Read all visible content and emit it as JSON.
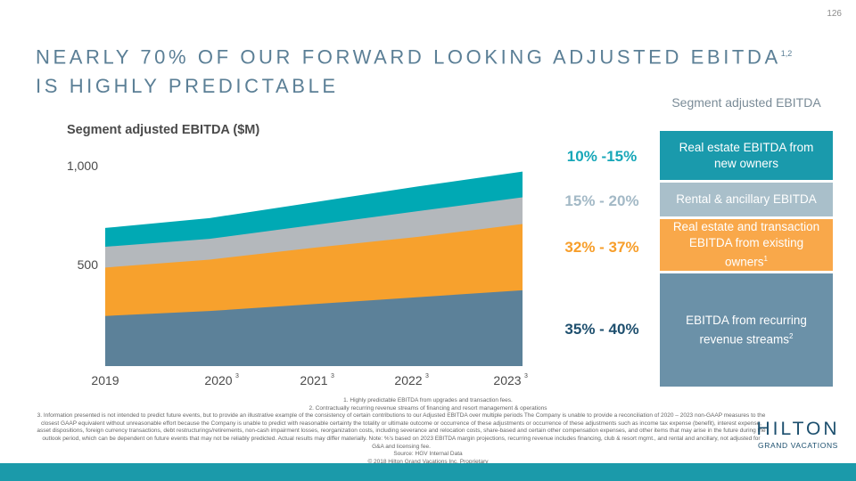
{
  "page": {
    "number": "126"
  },
  "header": {
    "title": "NEARLY 70% OF OUR FORWARD LOOKING ADJUSTED EBITDA",
    "title_sup": "1,2",
    "title_end": " IS HIGHLY PREDICTABLE"
  },
  "segment_header": "Segment adjusted EBITDA",
  "colors": {
    "teal": "#00a9b4",
    "gray": "#b4b8bc",
    "orange": "#f7a12d",
    "slate": "#5c8199",
    "box_teal": "#1a9aac",
    "box_light": "#a9bfca",
    "box_orange": "#f9a84a",
    "box_slate": "#6b91a8",
    "title_blue": "#5b7f96"
  },
  "chart_data": {
    "type": "area",
    "title": "Segment adjusted EBITDA ($M)",
    "x": [
      "2019",
      "2020",
      "2021",
      "2022",
      "2023"
    ],
    "x_sup": [
      "",
      "3",
      "3",
      "3",
      "3"
    ],
    "ytick_labels": [
      "1,000",
      "500"
    ],
    "ylim": [
      0,
      1000
    ],
    "stacked": true,
    "series": [
      {
        "values": [
          240,
          265,
          300,
          335,
          370
        ],
        "color": "#5c8199"
      },
      {
        "values": [
          485,
          525,
          585,
          640,
          705
        ],
        "color": "#f7a12d"
      },
      {
        "values": [
          590,
          630,
          700,
          770,
          840
        ],
        "color": "#b4b8bc"
      },
      {
        "values": [
          685,
          735,
          815,
          895,
          970
        ],
        "color": "#00a9b4"
      }
    ],
    "grid": false,
    "legend": "none"
  },
  "percentages": [
    {
      "label": "10% -15%",
      "color": "#17a7b8"
    },
    {
      "label": "15% - 20%",
      "color": "#a3b9c6"
    },
    {
      "label": "32% - 37%",
      "color": "#f79e2a"
    },
    {
      "label": "35% - 40%",
      "color": "#1e4f6e"
    }
  ],
  "segments": [
    {
      "label": "Real estate EBITDA from new owners",
      "sup": ""
    },
    {
      "label": "Rental & ancillary EBITDA",
      "sup": ""
    },
    {
      "label": "Real estate and transaction EBITDA from existing owners",
      "sup": "1"
    },
    {
      "label": "EBITDA from recurring revenue streams",
      "sup": "2"
    }
  ],
  "footnotes": {
    "f1": "1.        Highly predictable EBITDA from upgrades and transaction fees.",
    "f2": "2.        Contractually recurring revenue streams of financing and resort management & operations",
    "f3": "3.        Information presented is not intended to predict future events, but to provide an illustrative example of the consistency of certain contributions to our Adjusted EBITDA over multiple periods The Company is unable to provide a reconciliation of 2020 – 2023 non-GAAP measures to the closest GAAP equivalent without unreasonable effort because the Company is unable to predict with reasonable certainty the totality or ultimate outcome or occurrence of these adjustments or occurrence of these adjustments such as income tax expense (benefit), interest expense, asset dispositions, foreign currency transactions, debt restructurings/retirements, non-cash impairment losses, reorganization costs, including severance and relocation costs, share-based and certain other compensation expenses, and other items that may arise in the future during the outlook period, which can be dependent on future events that may not be reliably predicted. Actual results may differ materially. Note: %'s based on 2023 EBITDA margin projections, recurring revenue includes financing, club & resort mgmt., and rental and ancillary, not adjusted for G&A and licensing fee.",
    "source": "Source: HGV Internal Data",
    "copyright": "© 2018 Hilton Grand Vacations Inc. Proprietary"
  },
  "logo": {
    "main": "HILTON",
    "sub": "GRAND VACATIONS"
  }
}
